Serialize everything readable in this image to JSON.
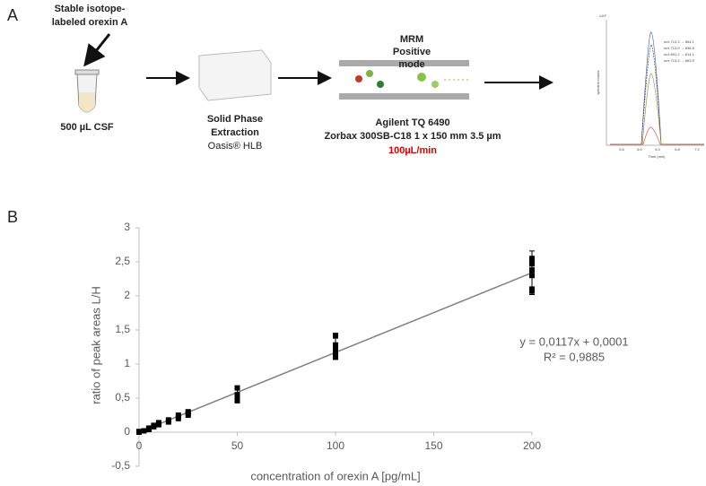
{
  "panel_a": {
    "letter": "A",
    "label_lines": [
      "Stable isotope-",
      "labeled orexin A"
    ],
    "sample": "500 µL CSF",
    "spe_lines": [
      "Solid Phase",
      "Extraction"
    ],
    "spe_product": "Oasis® HLB",
    "mrm_lines": [
      "MRM",
      "Positive",
      "mode"
    ],
    "instrument": "Agilent TQ 6490",
    "column": "Zorbax 300SB-C18 1 x 150 mm 3.5 µm",
    "flow": "100µL/min",
    "inset": {
      "scale": "x10²",
      "y_label": "spectral counts",
      "x_label": "Time (min)",
      "x_ticks": [
        "5.6",
        "6.0",
        "6.4",
        "6.8",
        "7.2"
      ],
      "legend": [
        "m/z 713.3 → 854.1",
        "m/z 713.9 → 838.6",
        "m/z 891.2 → 814.1",
        "m/z 713.3 → 663.9"
      ]
    }
  },
  "chart_data": {
    "type": "scatter",
    "letter": "B",
    "x_label": "concentration of orexin A [pg/mL]",
    "y_label": "ratio of peak areas L/H",
    "xlim": [
      0,
      200
    ],
    "xticks": [
      0,
      50,
      100,
      150,
      200
    ],
    "ylim": [
      -0.5,
      3
    ],
    "yticks": [
      {
        "value": -0.5,
        "label": "-0,5"
      },
      0,
      {
        "value": 0.5,
        "label": "0,5"
      },
      1,
      {
        "value": 1.5,
        "label": "1,5"
      },
      2,
      {
        "value": 2.5,
        "label": "2,5"
      },
      3
    ],
    "color": "#000000",
    "x": [
      0,
      0,
      0,
      2.5,
      5,
      5,
      7.5,
      7.5,
      10,
      10,
      10,
      15,
      15,
      20,
      20,
      25,
      25,
      25,
      50,
      50,
      50,
      50,
      100,
      100,
      100,
      100,
      100,
      200,
      200,
      200,
      200,
      200,
      200,
      200
    ],
    "values": [
      0,
      0,
      0.01,
      0.02,
      0.04,
      0.06,
      0.08,
      0.1,
      0.11,
      0.12,
      0.14,
      0.15,
      0.18,
      0.2,
      0.25,
      0.25,
      0.28,
      0.3,
      0.47,
      0.52,
      0.55,
      0.65,
      1.1,
      1.15,
      1.22,
      1.28,
      1.42,
      2.07,
      2.1,
      2.3,
      2.38,
      2.47,
      2.52,
      2.55
    ],
    "error_bars": {
      "x": [
        50,
        100,
        200
      ],
      "values": [
        0.53,
        1.23,
        2.34
      ],
      "errors": [
        0.1,
        0.15,
        0.32
      ]
    },
    "trendline": {
      "slope": 0.0117,
      "intercept": 0.0001,
      "color": "#808080"
    },
    "equation": "y = 0,0117x + 0,0001",
    "r2": "R² = 0,9885"
  }
}
